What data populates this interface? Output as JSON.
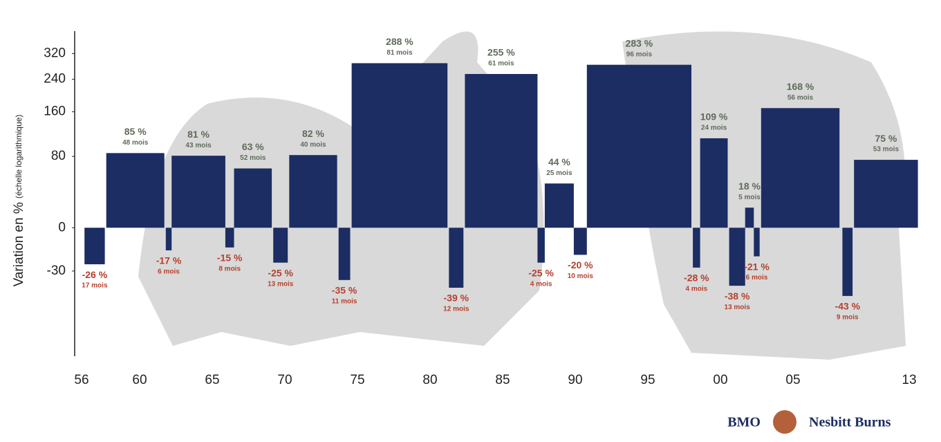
{
  "chart_data": {
    "type": "bar",
    "log": true,
    "y_label": "Variation en %",
    "y_label_note": "(échelle logarithmique)",
    "ylim": [
      -60,
      420
    ],
    "yticks": [
      320,
      240,
      160,
      80,
      0,
      -30
    ],
    "xlim": [
      1956,
      2014
    ],
    "xticks": [
      {
        "value": 1956,
        "label": "56"
      },
      {
        "value": 1960,
        "label": "60"
      },
      {
        "value": 1965,
        "label": "65"
      },
      {
        "value": 1970,
        "label": "70"
      },
      {
        "value": 1975,
        "label": "75"
      },
      {
        "value": 1980,
        "label": "80"
      },
      {
        "value": 1985,
        "label": "85"
      },
      {
        "value": 1990,
        "label": "90"
      },
      {
        "value": 1995,
        "label": "95"
      },
      {
        "value": 2000,
        "label": "00"
      },
      {
        "value": 2005,
        "label": "05"
      },
      {
        "value": 2013,
        "label": "13"
      }
    ],
    "bull_color": "#1c2d63",
    "bull_label_color": "#5f6b5a",
    "bear_color": "#1c2d63",
    "bear_label_color": "#b5402e",
    "markets": [
      {
        "start": 1956.2,
        "end": 1957.6,
        "value": -26,
        "value_label": "-26 %",
        "duration": "17 mois"
      },
      {
        "start": 1957.7,
        "end": 1961.7,
        "value": 85,
        "value_label": "85 %",
        "duration": "48 mois"
      },
      {
        "start": 1961.8,
        "end": 1962.2,
        "value": -17,
        "value_label": "-17 %",
        "duration": "6 mois"
      },
      {
        "start": 1962.2,
        "end": 1965.9,
        "value": 81,
        "value_label": "81 %",
        "duration": "43 mois"
      },
      {
        "start": 1965.9,
        "end": 1966.5,
        "value": -15,
        "value_label": "-15 %",
        "duration": "8 mois"
      },
      {
        "start": 1966.5,
        "end": 1969.1,
        "value": 63,
        "value_label": "63 %",
        "duration": "52 mois"
      },
      {
        "start": 1969.2,
        "end": 1970.2,
        "value": -25,
        "value_label": "-25 %",
        "duration": "13 mois"
      },
      {
        "start": 1970.3,
        "end": 1973.6,
        "value": 82,
        "value_label": "82 %",
        "duration": "40 mois"
      },
      {
        "start": 1973.7,
        "end": 1974.5,
        "value": -35,
        "value_label": "-35 %",
        "duration": "11 mois"
      },
      {
        "start": 1974.6,
        "end": 1981.2,
        "value": 288,
        "value_label": "288 %",
        "duration": "81 mois"
      },
      {
        "start": 1981.3,
        "end": 1982.3,
        "value": -39,
        "value_label": "-39 %",
        "duration": "12 mois"
      },
      {
        "start": 1982.4,
        "end": 1987.4,
        "value": 255,
        "value_label": "255 %",
        "duration": "61 mois"
      },
      {
        "start": 1987.4,
        "end": 1987.9,
        "value": -25,
        "value_label": "-25 %",
        "duration": "4 mois"
      },
      {
        "start": 1987.9,
        "end": 1989.9,
        "value": 44,
        "value_label": "44 %",
        "duration": "25 mois"
      },
      {
        "start": 1989.9,
        "end": 1990.8,
        "value": -20,
        "value_label": "-20 %",
        "duration": "10 mois"
      },
      {
        "start": 1990.8,
        "end": 1998.0,
        "value": 283,
        "value_label": "283 %",
        "duration": "96 mois"
      },
      {
        "start": 1998.1,
        "end": 1998.6,
        "value": -28,
        "value_label": "-28 %",
        "duration": "4 mois"
      },
      {
        "start": 1998.6,
        "end": 2000.5,
        "value": 109,
        "value_label": "109 %",
        "duration": "24 mois"
      },
      {
        "start": 2000.6,
        "end": 2001.7,
        "value": -38,
        "value_label": "-38 %",
        "duration": "13 mois"
      },
      {
        "start": 2001.7,
        "end": 2002.3,
        "value": 18,
        "value_label": "18 %",
        "duration": "5 mois"
      },
      {
        "start": 2002.3,
        "end": 2002.7,
        "value": -21,
        "value_label": "-21 %",
        "duration": "6 mois"
      },
      {
        "start": 2002.8,
        "end": 2008.2,
        "value": 168,
        "value_label": "168 %",
        "duration": "56 mois"
      },
      {
        "start": 2008.4,
        "end": 2009.1,
        "value": -43,
        "value_label": "-43 %",
        "duration": "9 mois"
      },
      {
        "start": 2009.2,
        "end": 2013.6,
        "value": 75,
        "value_label": "75 %",
        "duration": "53 mois"
      }
    ]
  },
  "logo": {
    "left": "BMO",
    "right": "Nesbitt Burns"
  }
}
